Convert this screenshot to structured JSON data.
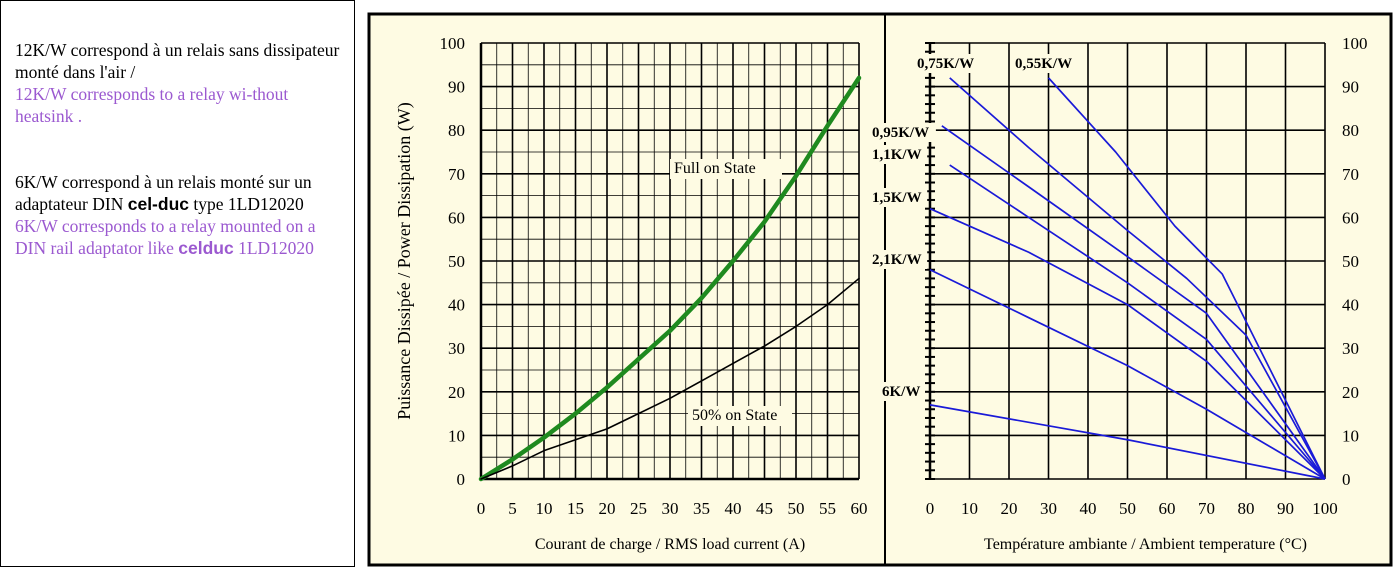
{
  "notes": {
    "note1_fr": "12K/W correspond à un relais sans dissipateur monté dans l'air /",
    "note1_en": "12K/W corresponds to a relay wi-thout heatsink .",
    "note2_fr_a": "6K/W correspond à un relais monté sur un adaptateur DIN ",
    "note2_fr_brand": "cel-duc",
    "note2_fr_b": " type 1LD12020",
    "note2_en_a": "6K/W corresponds to a relay mounted on a DIN rail adaptator like ",
    "note2_en_brand": "celduc",
    "note2_en_b": " 1LD12020"
  },
  "colors": {
    "panel_bg": "#fefbe3",
    "grid": "#000000",
    "full_on": "#1f8a1f",
    "half_on": "#000000",
    "thermal_lines": "#1a1ad8",
    "note_en": "#9b59d0"
  },
  "chart_data": [
    {
      "type": "line",
      "xlabel": "Courant de charge / RMS load current (A)",
      "ylabel": "Puissance Dissipée / Power Dissipation (W)",
      "xlim": [
        0,
        60
      ],
      "ylim": [
        0,
        100
      ],
      "x_ticks": [
        "0",
        "5",
        "10",
        "15",
        "20",
        "25",
        "30",
        "35",
        "40",
        "45",
        "50",
        "55",
        "60"
      ],
      "y_ticks": [
        "0",
        "10",
        "20",
        "30",
        "40",
        "50",
        "60",
        "70",
        "80",
        "90",
        "100"
      ],
      "grid": true,
      "series": [
        {
          "name": "Full on State",
          "x": [
            0,
            5,
            10,
            15,
            20,
            25,
            30,
            35,
            40,
            45,
            50,
            55,
            60
          ],
          "y": [
            0,
            4.5,
            9.5,
            15,
            21,
            27.5,
            34,
            41.5,
            50,
            59,
            69.5,
            81,
            92
          ]
        },
        {
          "name": "50% on State",
          "x": [
            0,
            5,
            10,
            15,
            20,
            25,
            30,
            35,
            40,
            45,
            50,
            55,
            60
          ],
          "y": [
            0,
            3,
            6.5,
            9,
            11.5,
            15,
            18.5,
            22.5,
            26.5,
            30.5,
            35,
            40,
            46
          ]
        }
      ]
    },
    {
      "type": "line",
      "xlabel": "Température ambiante / Ambient temperature (°C)",
      "xlim": [
        0,
        100
      ],
      "ylim": [
        0,
        100
      ],
      "x_ticks": [
        "0",
        "10",
        "20",
        "30",
        "40",
        "50",
        "60",
        "70",
        "80",
        "90",
        "100"
      ],
      "y_ticks": [
        "0",
        "10",
        "20",
        "30",
        "40",
        "50",
        "60",
        "70",
        "80",
        "90",
        "100"
      ],
      "grid": true,
      "series": [
        {
          "name": "0,75K/W",
          "x": [
            5,
            25,
            50,
            65,
            80,
            100
          ],
          "y": [
            92,
            76,
            57,
            46,
            33,
            0
          ]
        },
        {
          "name": "0,55K/W",
          "x": [
            30,
            47,
            62,
            74,
            100
          ],
          "y": [
            92,
            75,
            58,
            47,
            0
          ]
        },
        {
          "name": "0,95K/W",
          "x": [
            3,
            25,
            50,
            70,
            100
          ],
          "y": [
            81,
            67,
            51,
            38,
            0
          ]
        },
        {
          "name": "1,1K/W",
          "x": [
            5,
            25,
            50,
            70,
            100
          ],
          "y": [
            72,
            60,
            45,
            32,
            0
          ]
        },
        {
          "name": "1,5K/W",
          "x": [
            0,
            25,
            50,
            70,
            100
          ],
          "y": [
            62,
            52,
            40,
            27,
            0
          ]
        },
        {
          "name": "2,1K/W",
          "x": [
            0,
            25,
            50,
            70,
            100
          ],
          "y": [
            48,
            37,
            26,
            16,
            0
          ]
        },
        {
          "name": "6K/W",
          "x": [
            0,
            50,
            100
          ],
          "y": [
            17,
            9,
            0
          ]
        }
      ]
    }
  ]
}
